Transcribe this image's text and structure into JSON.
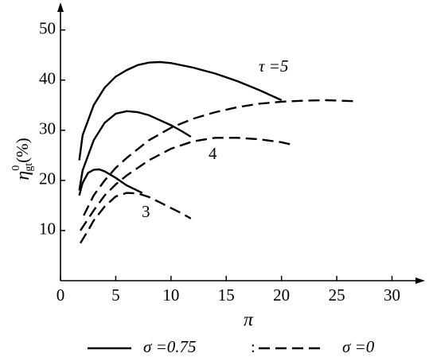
{
  "chart_data": {
    "type": "line",
    "xlabel": "π",
    "ylabel": {
      "symbol": "η",
      "sup": "0",
      "sub": "gt",
      "unit": "(%)"
    },
    "xlim": [
      0,
      32.7
    ],
    "ylim": [
      0,
      55.5
    ],
    "xticks": [
      0,
      5,
      10,
      15,
      20,
      25,
      30
    ],
    "yticks": [
      10,
      20,
      30,
      40,
      50
    ],
    "series": [
      {
        "color": "#000",
        "dash": false,
        "x": [
          1.7,
          2,
          3,
          4,
          5,
          6,
          7,
          8,
          9,
          10,
          12,
          14,
          16,
          18,
          20
        ],
        "values": [
          24,
          29,
          35,
          38.5,
          40.7,
          42,
          43,
          43.5,
          43.6,
          43.4,
          42.5,
          41.3,
          39.8,
          38,
          36
        ]
      },
      {
        "color": "#000",
        "dash": false,
        "x": [
          1.7,
          2,
          3,
          4,
          5,
          6,
          7,
          8,
          9,
          10,
          11,
          11.8
        ],
        "values": [
          18,
          22,
          28,
          31.5,
          33.3,
          33.8,
          33.6,
          33,
          32,
          31,
          29.8,
          28.7
        ]
      },
      {
        "color": "#000",
        "dash": false,
        "x": [
          1.7,
          2,
          2.5,
          3,
          3.5,
          4,
          5,
          6,
          7.4
        ],
        "values": [
          17,
          19.5,
          21.5,
          22.1,
          22.2,
          21.8,
          20.5,
          19,
          17.5
        ]
      },
      {
        "color": "#000",
        "dash": true,
        "x": [
          2.1,
          3,
          4,
          5,
          6,
          8,
          10,
          12,
          14,
          16,
          18,
          20,
          22,
          24,
          26.5
        ],
        "values": [
          13,
          17,
          20,
          22.5,
          24.5,
          28,
          30.5,
          32.3,
          33.6,
          34.6,
          35.3,
          35.7,
          35.9,
          36,
          35.8
        ]
      },
      {
        "color": "#000",
        "dash": true,
        "x": [
          1.8,
          3,
          4,
          5,
          6,
          8,
          10,
          12,
          14,
          16,
          18,
          20,
          21.2
        ],
        "values": [
          10,
          14,
          17,
          19.2,
          21,
          24,
          26.3,
          27.8,
          28.5,
          28.5,
          28.2,
          27.6,
          27
        ]
      },
      {
        "color": "#000",
        "dash": true,
        "x": [
          1.8,
          2.5,
          3,
          4,
          5,
          6,
          7,
          8,
          9,
          10,
          11,
          11.8
        ],
        "values": [
          7.5,
          10,
          12,
          14.8,
          16.8,
          17.5,
          17.4,
          16.7,
          15.6,
          14.5,
          13.4,
          12.4
        ]
      }
    ],
    "annotations": [
      "τ =5",
      "4",
      "3"
    ],
    "legend": [
      {
        "label": "σ =0.75",
        "dash": false
      },
      {
        "label": "σ =0",
        "dash": true
      }
    ],
    "legend_separator": ":"
  }
}
